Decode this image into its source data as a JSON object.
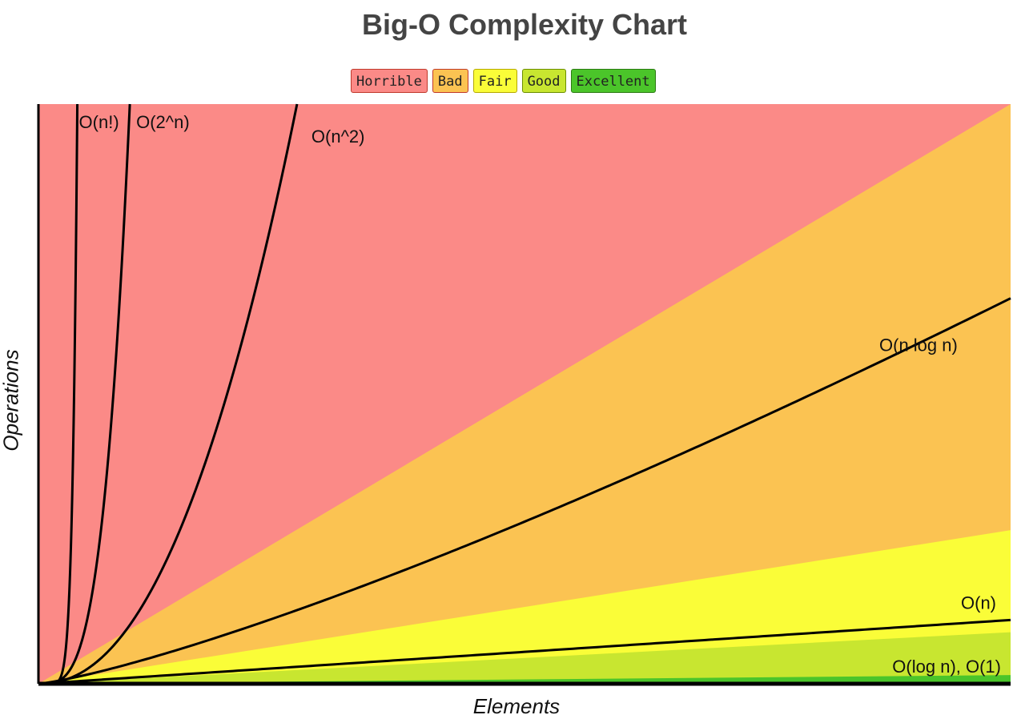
{
  "chart_data": {
    "type": "area",
    "title": "Big-O Complexity Chart",
    "xlabel": "Elements",
    "ylabel": "Operations",
    "grid": false,
    "legend_position": "top-center",
    "xlim": [
      0,
      100
    ],
    "ylim": [
      0,
      100
    ],
    "legend": [
      {
        "name": "Horrible",
        "color": "#fb8a87",
        "border": "#c0392b"
      },
      {
        "name": "Bad",
        "color": "#fbc352",
        "border": "#c0392b"
      },
      {
        "name": "Fair",
        "color": "#fafd38",
        "border": "#b5a800"
      },
      {
        "name": "Good",
        "color": "#c8e630",
        "border": "#6b8e00"
      },
      {
        "name": "Excellent",
        "color": "#4bc52a",
        "border": "#2b7a12"
      }
    ],
    "regions": [
      {
        "name": "Horrible",
        "color": "#fb8a87",
        "lower_boundary_end_y": 100
      },
      {
        "name": "Bad",
        "color": "#fbc352",
        "lower_boundary_end_y": 26.5
      },
      {
        "name": "Fair",
        "color": "#fafd38",
        "lower_boundary_end_y": 8.9
      },
      {
        "name": "Good",
        "color": "#c8e630",
        "lower_boundary_end_y": 1.5
      },
      {
        "name": "Excellent",
        "color": "#4bc52a",
        "lower_boundary_end_y": 0
      }
    ],
    "series": [
      {
        "name": "O(n!)",
        "kind": "factorial",
        "x_at_top": 4.0
      },
      {
        "name": "O(2^n)",
        "kind": "exponential",
        "x_at_top": 9.4
      },
      {
        "name": "O(n^2)",
        "kind": "quadratic",
        "x_at_top": 26.6
      },
      {
        "name": "O(n log n)",
        "kind": "nlogn",
        "y_at_end": 66.5
      },
      {
        "name": "O(n)",
        "kind": "linear",
        "y_at_end": 11.0
      },
      {
        "name": "O(log n), O(1)",
        "kind": "flat",
        "y_at_end": 0
      }
    ]
  }
}
